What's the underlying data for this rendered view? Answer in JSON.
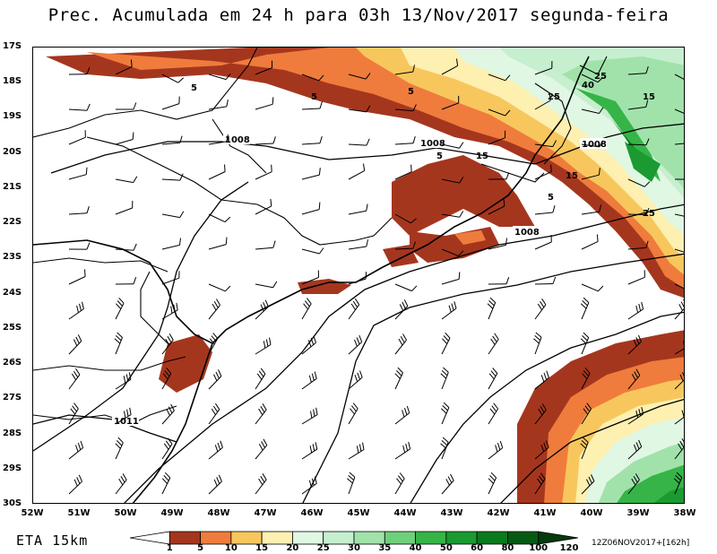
{
  "title": "Prec. Acumulada em 24 h para 03h 13/Nov/2017 segunda-feira",
  "model_label": "ETA 15km",
  "run_label": "12Z06NOV2017+[162h]",
  "latitudes": [
    "17S",
    "18S",
    "19S",
    "20S",
    "21S",
    "22S",
    "23S",
    "24S",
    "25S",
    "26S",
    "27S",
    "28S",
    "29S",
    "30S"
  ],
  "longitudes": [
    "52W",
    "51W",
    "50W",
    "49W",
    "48W",
    "47W",
    "46W",
    "45W",
    "44W",
    "43W",
    "42W",
    "41W",
    "40W",
    "39W",
    "38W"
  ],
  "colorbar": {
    "labels": [
      "1",
      "5",
      "10",
      "15",
      "20",
      "25",
      "30",
      "35",
      "40",
      "50",
      "60",
      "80",
      "100",
      "120"
    ],
    "colors": [
      "#ffffff",
      "#a5361e",
      "#ef7c3c",
      "#f7c75e",
      "#fdf0b0",
      "#e0f7e4",
      "#c6efcf",
      "#a1e2ab",
      "#6fd07c",
      "#36b447",
      "#1a9a30",
      "#0a7a1e",
      "#065a14",
      "#033b0b"
    ]
  },
  "contour_labels": {
    "isobar_1008": "1008",
    "isobar_1011": "1011",
    "precip_5": "5",
    "precip_15": "15",
    "precip_25": "25",
    "precip_40": "40"
  }
}
